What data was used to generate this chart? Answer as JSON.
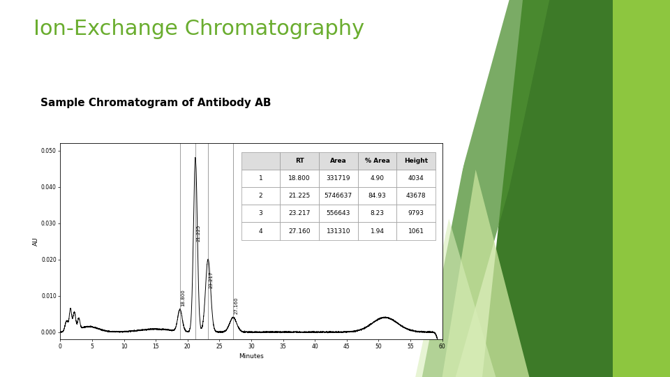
{
  "title": "Ion-Exchange Chromatography",
  "subtitle": "Sample Chromatogram of Antibody AB",
  "title_color": "#6aad2f",
  "subtitle_color": "#000000",
  "bg_color": "#ffffff",
  "xlabel": "Minutes",
  "ylabel": "AU",
  "xlim": [
    0,
    60
  ],
  "ylim": [
    -0.002,
    0.052
  ],
  "yticks": [
    0.0,
    0.01,
    0.02,
    0.03,
    0.04,
    0.05
  ],
  "xticks": [
    0,
    5,
    10,
    15,
    20,
    25,
    30,
    35,
    40,
    45,
    50,
    55,
    60
  ],
  "table_data": [
    [
      "",
      "RT",
      "Area",
      "% Area",
      "Height"
    ],
    [
      "1",
      "18.800",
      "331719",
      "4.90",
      "4034"
    ],
    [
      "2",
      "21.225",
      "5746637",
      "84.93",
      "43678"
    ],
    [
      "3",
      "23.217",
      "556643",
      "8.23",
      "9793"
    ],
    [
      "4",
      "27.160",
      "131310",
      "1.94",
      "1061"
    ]
  ],
  "peaks": [
    {
      "rt": 18.8,
      "label": "18.800"
    },
    {
      "rt": 21.225,
      "label": "21.225"
    },
    {
      "rt": 23.217,
      "label": "23.217"
    },
    {
      "rt": 27.16,
      "label": "27.160"
    }
  ],
  "green_colors": {
    "dark_green": "#3d7a28",
    "medium_green": "#4e8f32",
    "light_green": "#7dc142",
    "bright_green": "#8dc63f",
    "pale_green": "#c5e09a",
    "very_light": "#d8edb8"
  },
  "title_fontsize": 22,
  "subtitle_fontsize": 11
}
